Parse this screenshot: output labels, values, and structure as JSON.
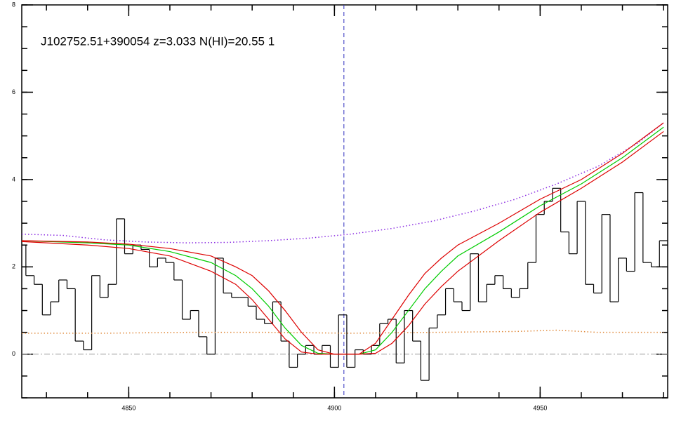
{
  "chart_data": {
    "type": "line",
    "title": "J102752.51+390054 z=3.033 N(HI)=20.55 1",
    "xlim": [
      4824,
      4981
    ],
    "ylim": [
      -1,
      8
    ],
    "xticks": [
      4850,
      4900,
      4950
    ],
    "yticks": [
      0,
      2,
      4,
      6,
      8
    ],
    "vline": 4902.3,
    "vline_color": "#3030c0",
    "hline": 0,
    "hline_color": "#999999",
    "series": [
      {
        "style": "step",
        "color": "#000000",
        "x": [
          4824,
          4826,
          4828,
          4830,
          4832,
          4834,
          4836,
          4838,
          4840,
          4842,
          4844,
          4846,
          4848,
          4850,
          4852,
          4854,
          4856,
          4858,
          4860,
          4862,
          4864,
          4866,
          4868,
          4870,
          4872,
          4874,
          4876,
          4878,
          4880,
          4882,
          4884,
          4886,
          4888,
          4890,
          4892,
          4894,
          4896,
          4898,
          4900,
          4902,
          4904,
          4906,
          4908,
          4910,
          4912,
          4914,
          4916,
          4918,
          4920,
          4922,
          4924,
          4926,
          4928,
          4930,
          4932,
          4934,
          4936,
          4938,
          4940,
          4942,
          4944,
          4946,
          4948,
          4950,
          4952,
          4954,
          4956,
          4958,
          4960,
          4962,
          4964,
          4966,
          4968,
          4970,
          4972,
          4974,
          4976,
          4978,
          4980
        ],
        "values": [
          2.5,
          1.8,
          1.6,
          0.9,
          1.2,
          1.7,
          1.5,
          0.3,
          0.1,
          1.8,
          1.3,
          1.6,
          3.1,
          2.3,
          2.5,
          2.4,
          2.0,
          2.2,
          2.1,
          1.7,
          0.8,
          1.0,
          0.4,
          0.0,
          2.2,
          1.4,
          1.3,
          1.3,
          1.1,
          0.8,
          0.7,
          1.2,
          0.3,
          -0.3,
          0.0,
          0.2,
          0.0,
          0.2,
          -0.3,
          0.9,
          -0.3,
          0.1,
          0.0,
          0.2,
          0.7,
          0.8,
          -0.2,
          1.0,
          0.3,
          -0.6,
          0.6,
          0.9,
          1.5,
          1.2,
          1.0,
          2.3,
          1.2,
          1.6,
          1.8,
          1.5,
          1.3,
          1.5,
          2.1,
          3.2,
          3.5,
          3.8,
          2.8,
          2.3,
          3.5,
          1.6,
          1.4,
          3.2,
          1.2,
          2.2,
          1.9,
          3.7,
          2.1,
          2.0,
          2.6
        ]
      },
      {
        "style": "dotted",
        "color": "#e08a3c",
        "x": [
          4824,
          4844,
          4864,
          4884,
          4904,
          4924,
          4944,
          4954,
          4964,
          4980
        ],
        "values": [
          0.48,
          0.48,
          0.5,
          0.5,
          0.48,
          0.5,
          0.52,
          0.55,
          0.5,
          0.5
        ]
      },
      {
        "style": "dotted",
        "color": "#8a2be2",
        "x": [
          4824,
          4834,
          4844,
          4854,
          4864,
          4874,
          4884,
          4894,
          4904,
          4914,
          4924,
          4934,
          4944,
          4954,
          4964,
          4974,
          4980
        ],
        "values": [
          2.75,
          2.72,
          2.62,
          2.57,
          2.55,
          2.56,
          2.6,
          2.66,
          2.75,
          2.88,
          3.05,
          3.28,
          3.55,
          3.9,
          4.3,
          4.85,
          5.3
        ]
      },
      {
        "style": "solid",
        "color": "#00cc00",
        "x": [
          4824,
          4840,
          4850,
          4860,
          4870,
          4876,
          4880,
          4884,
          4888,
          4892,
          4896,
          4900,
          4906,
          4910,
          4914,
          4918,
          4922,
          4926,
          4930,
          4940,
          4950,
          4960,
          4970,
          4980
        ],
        "values": [
          2.6,
          2.55,
          2.5,
          2.35,
          2.1,
          1.8,
          1.5,
          1.1,
          0.6,
          0.2,
          0.02,
          0,
          0,
          0.1,
          0.5,
          1.0,
          1.5,
          1.9,
          2.25,
          2.8,
          3.4,
          3.9,
          4.5,
          5.2
        ]
      },
      {
        "style": "solid",
        "color": "#dd0000",
        "x": [
          4824,
          4840,
          4850,
          4860,
          4870,
          4876,
          4880,
          4884,
          4888,
          4892,
          4896,
          4900,
          4906,
          4910,
          4914,
          4918,
          4922,
          4926,
          4930,
          4940,
          4950,
          4960,
          4970,
          4980
        ],
        "values": [
          2.6,
          2.57,
          2.52,
          2.42,
          2.25,
          2.0,
          1.8,
          1.45,
          1.0,
          0.5,
          0.1,
          0,
          0,
          0.25,
          0.8,
          1.35,
          1.85,
          2.2,
          2.5,
          3.0,
          3.55,
          4.0,
          4.6,
          5.3
        ]
      },
      {
        "style": "solid",
        "color": "#dd0000",
        "x": [
          4824,
          4840,
          4850,
          4860,
          4870,
          4876,
          4880,
          4884,
          4888,
          4892,
          4896,
          4900,
          4906,
          4910,
          4914,
          4918,
          4922,
          4926,
          4930,
          4940,
          4950,
          4960,
          4970,
          4980
        ],
        "values": [
          2.58,
          2.5,
          2.42,
          2.25,
          1.9,
          1.6,
          1.25,
          0.8,
          0.35,
          0.05,
          0,
          0,
          0,
          0.02,
          0.25,
          0.65,
          1.15,
          1.55,
          1.9,
          2.6,
          3.25,
          3.8,
          4.4,
          5.1
        ]
      }
    ]
  }
}
